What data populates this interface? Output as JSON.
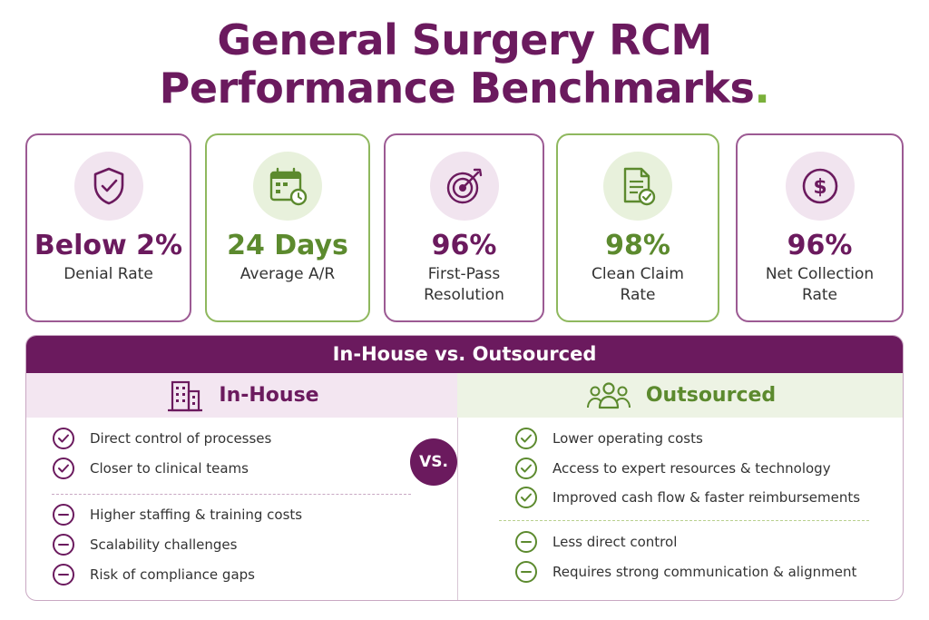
{
  "title": {
    "line1": "General Surgery RCM",
    "line2": "Performance Benchmarks",
    "dot": "."
  },
  "colors": {
    "purple": "#6b1a5e",
    "green": "#5c8a2e"
  },
  "benchmarks": [
    {
      "icon": "shield-check-icon",
      "value": "Below 2%",
      "label": "Denial Rate",
      "theme": "purple"
    },
    {
      "icon": "calendar-clock-icon",
      "value": "24 Days",
      "label": "Average A/R",
      "theme": "green"
    },
    {
      "icon": "target-arrow-icon",
      "value": "96%",
      "label": "First-Pass\nResolution",
      "theme": "purple"
    },
    {
      "icon": "document-check-icon",
      "value": "98%",
      "label": "Clean Claim\nRate",
      "theme": "green"
    },
    {
      "icon": "dollar-icon",
      "value": "96%",
      "label": "Net Collection\nRate",
      "theme": "purple"
    }
  ],
  "comparison": {
    "heading": "In-House vs. Outsourced",
    "vs_label": "VS.",
    "in_house": {
      "title": "In-House",
      "icon": "building-icon",
      "pros": [
        "Direct control of processes",
        "Closer to clinical teams"
      ],
      "cons": [
        "Higher staffing & training costs",
        "Scalability challenges",
        "Risk of compliance gaps"
      ]
    },
    "outsourced": {
      "title": "Outsourced",
      "icon": "team-icon",
      "pros": [
        "Lower operating costs",
        "Access to expert resources & technology",
        "Improved cash flow & faster reimbursements"
      ],
      "cons": [
        "Less direct control",
        "Requires strong communication & alignment"
      ]
    }
  }
}
